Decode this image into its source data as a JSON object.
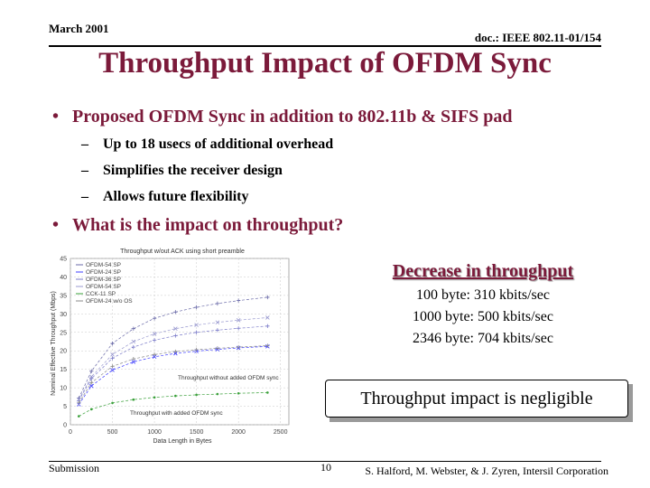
{
  "header": {
    "date": "March 2001",
    "doc": "doc.: IEEE 802.11-01/154"
  },
  "title": "Throughput Impact of OFDM Sync",
  "bullets": {
    "b1": "Proposed OFDM Sync in addition to 802.11b & SIFS pad",
    "sub": [
      "Up to 18 usecs of additional overhead",
      "Simplifies the receiver design",
      "Allows future flexibility"
    ],
    "b2": "What is the impact on throughput?"
  },
  "decrease": {
    "title": "Decrease in throughput",
    "lines": [
      "100 byte: 310 kbits/sec",
      "1000 byte: 500 kbits/sec",
      "2346 byte: 704 kbits/sec"
    ]
  },
  "callout": "Throughput impact is negligible",
  "footer": {
    "left": "Submission",
    "page": "10",
    "right": "S. Halford, M. Webster, & J. Zyren, Intersil Corporation"
  },
  "chart_data": {
    "type": "line",
    "title": "Throughput w/out ACK using short preamble",
    "xlabel": "Data Length in Bytes",
    "ylabel": "Nominal Effective Throughput (Mbps)",
    "xlim": [
      0,
      2600
    ],
    "ylim": [
      0,
      45
    ],
    "xticks": [
      "0",
      "500",
      "1000",
      "1500",
      "2000",
      "2500"
    ],
    "yticks": [
      "0",
      "5",
      "10",
      "15",
      "20",
      "25",
      "30",
      "35",
      "40",
      "45"
    ],
    "x": [
      100,
      250,
      500,
      750,
      1000,
      1250,
      1500,
      1750,
      2000,
      2346
    ],
    "series": [
      {
        "name": "OFDM-54 SP",
        "values": [
          7.2,
          14.5,
          22.0,
          26.0,
          28.8,
          30.5,
          31.8,
          32.8,
          33.6,
          34.5
        ]
      },
      {
        "name": "OFDM-24 SP",
        "values": [
          5.5,
          10.5,
          14.8,
          17.0,
          18.4,
          19.3,
          19.9,
          20.4,
          20.8,
          21.2
        ]
      },
      {
        "name": "OFDM-36 SP",
        "values": [
          6.5,
          12.5,
          18.0,
          21.0,
          22.9,
          24.1,
          25.0,
          25.6,
          26.1,
          26.7
        ]
      },
      {
        "name": "OFDM-54 SP ",
        "values": [
          6.8,
          13.0,
          19.0,
          22.5,
          24.6,
          26.0,
          27.0,
          27.7,
          28.3,
          29.0
        ]
      },
      {
        "name": "CCK-11 SP",
        "values": [
          2.3,
          4.2,
          5.9,
          6.8,
          7.4,
          7.8,
          8.1,
          8.3,
          8.5,
          8.7
        ]
      },
      {
        "name": "OFDM-24 w/o OS",
        "values": [
          5.9,
          11.4,
          15.8,
          17.8,
          19.0,
          19.8,
          20.3,
          20.7,
          21.0,
          21.4
        ]
      }
    ],
    "annotations": [
      "Throughput without added OFDM sync",
      "Throughput with added OFDM sync"
    ],
    "grid": true,
    "legend": "top-left",
    "colors": [
      "#6a6aa8",
      "#3c3cff",
      "#7b7bc9",
      "#9a9ad0",
      "#3aa03a",
      "#8a8a8a"
    ]
  }
}
